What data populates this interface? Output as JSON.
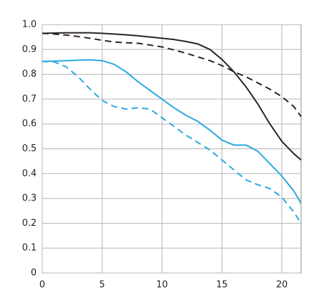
{
  "chart_data": {
    "type": "line",
    "x": [
      0,
      1,
      2,
      3,
      4,
      5,
      6,
      7,
      8,
      9,
      10,
      11,
      12,
      13,
      14,
      15,
      16,
      17,
      18,
      19,
      20,
      21,
      21.6
    ],
    "series": [
      {
        "color": "#2b2222",
        "dashed": false,
        "values": [
          0.965,
          0.966,
          0.967,
          0.967,
          0.967,
          0.965,
          0.962,
          0.959,
          0.955,
          0.95,
          0.945,
          0.94,
          0.932,
          0.922,
          0.9,
          0.86,
          0.81,
          0.75,
          0.68,
          0.6,
          0.53,
          0.48,
          0.455
        ]
      },
      {
        "color": "#2b2222",
        "dashed": true,
        "values": [
          0.965,
          0.962,
          0.958,
          0.952,
          0.945,
          0.937,
          0.93,
          0.927,
          0.925,
          0.918,
          0.91,
          0.898,
          0.885,
          0.87,
          0.855,
          0.835,
          0.81,
          0.79,
          0.765,
          0.74,
          0.71,
          0.67,
          0.63
        ]
      },
      {
        "color": "#29a8e0",
        "dashed": false,
        "values": [
          0.852,
          0.853,
          0.855,
          0.857,
          0.858,
          0.855,
          0.84,
          0.81,
          0.77,
          0.735,
          0.7,
          0.665,
          0.635,
          0.61,
          0.575,
          0.535,
          0.515,
          0.515,
          0.49,
          0.44,
          0.39,
          0.33,
          0.28
        ]
      },
      {
        "color": "#29a8e0",
        "dashed": true,
        "values": [
          0.852,
          0.85,
          0.83,
          0.79,
          0.74,
          0.695,
          0.67,
          0.66,
          0.665,
          0.66,
          0.625,
          0.59,
          0.555,
          0.525,
          0.495,
          0.455,
          0.415,
          0.375,
          0.355,
          0.34,
          0.305,
          0.245,
          0.2
        ]
      }
    ],
    "xlim": [
      0,
      21.6
    ],
    "xticks": [
      0,
      5,
      10,
      15,
      20
    ],
    "ylim": [
      0,
      1
    ],
    "yticks": [
      0,
      0.1,
      0.2,
      0.3,
      0.4,
      0.5,
      0.6,
      0.7,
      0.8,
      0.9,
      {
        "value": 1,
        "label": "1.0"
      }
    ],
    "grid": true
  }
}
